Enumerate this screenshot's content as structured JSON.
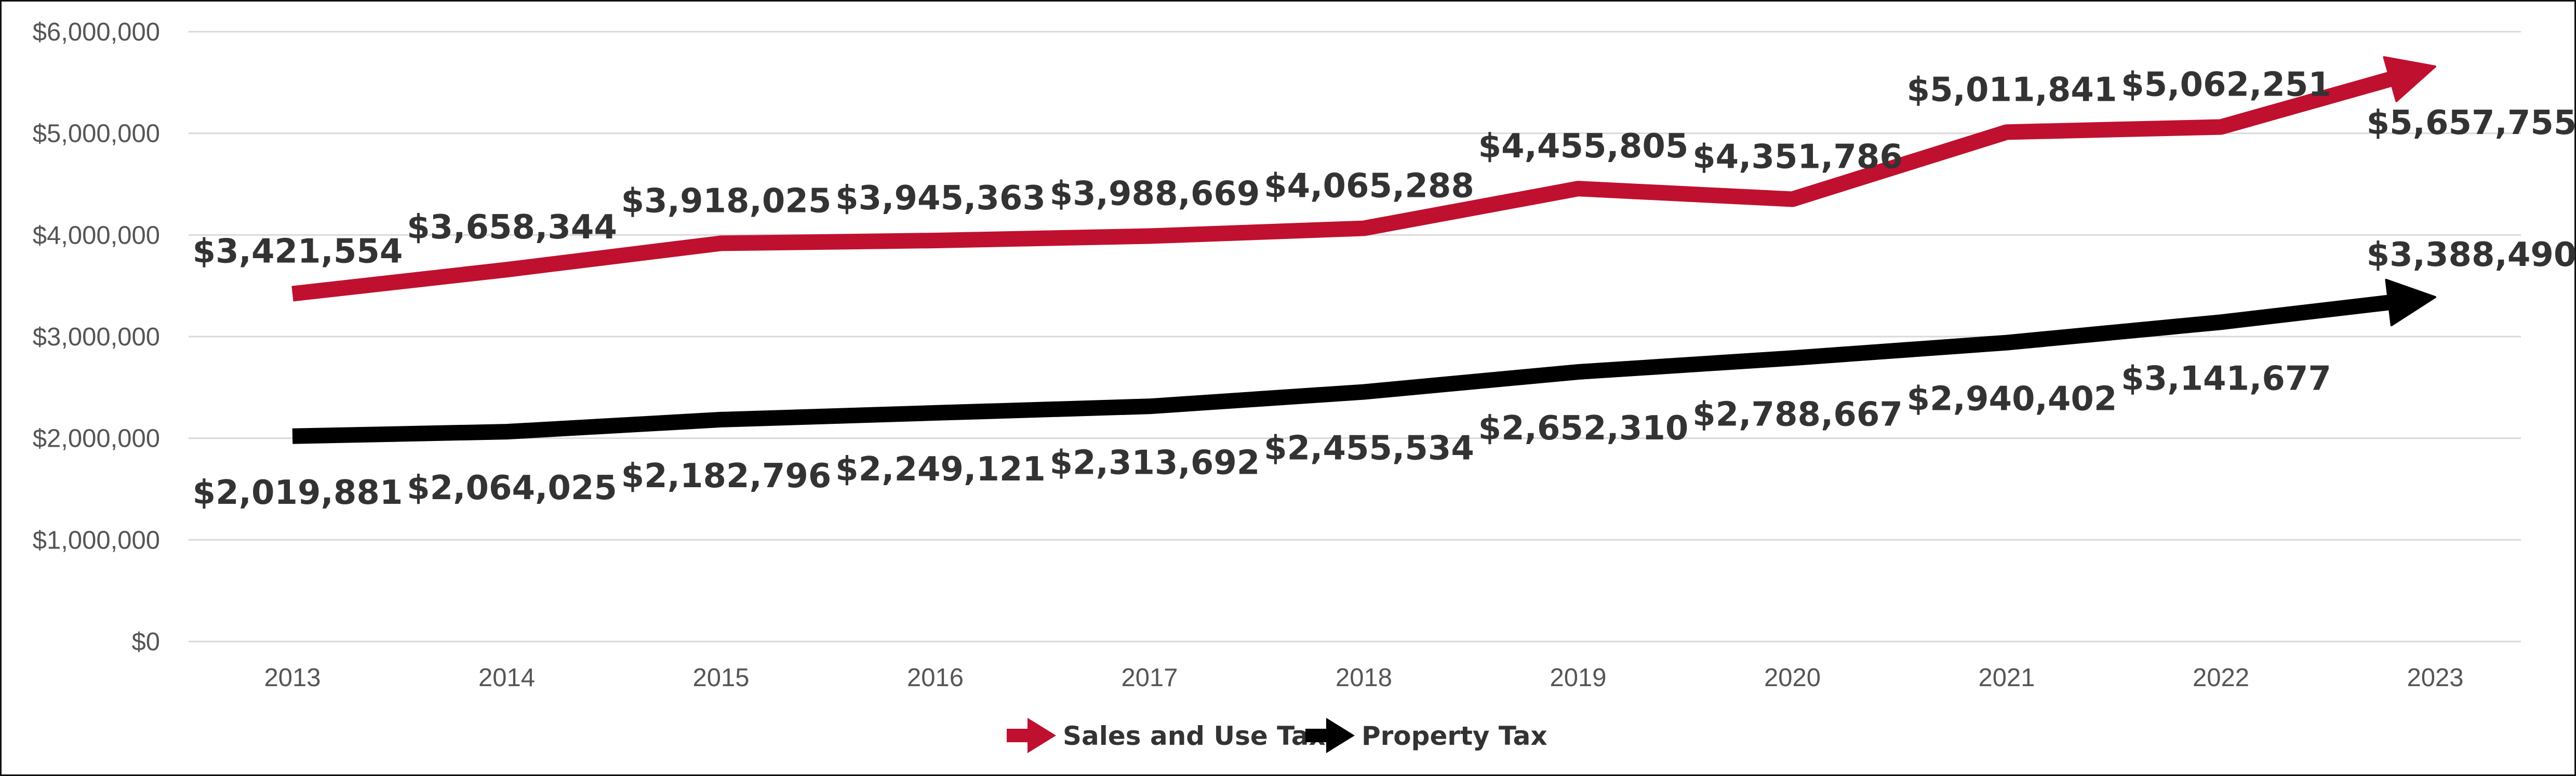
{
  "chart_data": {
    "type": "line",
    "title": "",
    "xlabel": "",
    "ylabel": "",
    "x": [
      "2013",
      "2014",
      "2015",
      "2016",
      "2017",
      "2018",
      "2019",
      "2020",
      "2021",
      "2022",
      "2023"
    ],
    "ylim": [
      0,
      6000000
    ],
    "y_ticks": [
      0,
      1000000,
      2000000,
      3000000,
      4000000,
      5000000,
      6000000
    ],
    "y_tick_labels": [
      "$0",
      "$1,000,000",
      "$2,000,000",
      "$3,000,000",
      "$4,000,000",
      "$5,000,000",
      "$6,000,000"
    ],
    "grid": true,
    "legend_position": "bottom",
    "series": [
      {
        "name": "Sales and Use Tax",
        "color": "#C0102F",
        "values": [
          3421554,
          3658344,
          3918025,
          3945363,
          3988669,
          4065288,
          4455805,
          4351786,
          5011841,
          5062251,
          5657755
        ],
        "labels": [
          "$3,421,554",
          "$3,658,344",
          "$3,918,025",
          "$3,945,363",
          "$3,988,669",
          "$4,065,288",
          "$4,455,805",
          "$4,351,786",
          "$5,011,841",
          "$5,062,251",
          "$5,657,755"
        ],
        "label_side": [
          "above",
          "above",
          "above",
          "above",
          "above",
          "above",
          "above",
          "above",
          "above",
          "above",
          "below"
        ]
      },
      {
        "name": "Property Tax",
        "color": "#000000",
        "values": [
          2019881,
          2064025,
          2182796,
          2249121,
          2313692,
          2455534,
          2652310,
          2788667,
          2940402,
          3141677,
          3388490
        ],
        "labels": [
          "$2,019,881",
          "$2,064,025",
          "$2,182,796",
          "$2,249,121",
          "$2,313,692",
          "$2,455,534",
          "$2,652,310",
          "$2,788,667",
          "$2,940,402",
          "$3,141,677",
          "$3,388,490"
        ],
        "label_side": [
          "below",
          "below",
          "below",
          "below",
          "below",
          "below",
          "below",
          "below",
          "below",
          "below",
          "above"
        ]
      }
    ]
  }
}
